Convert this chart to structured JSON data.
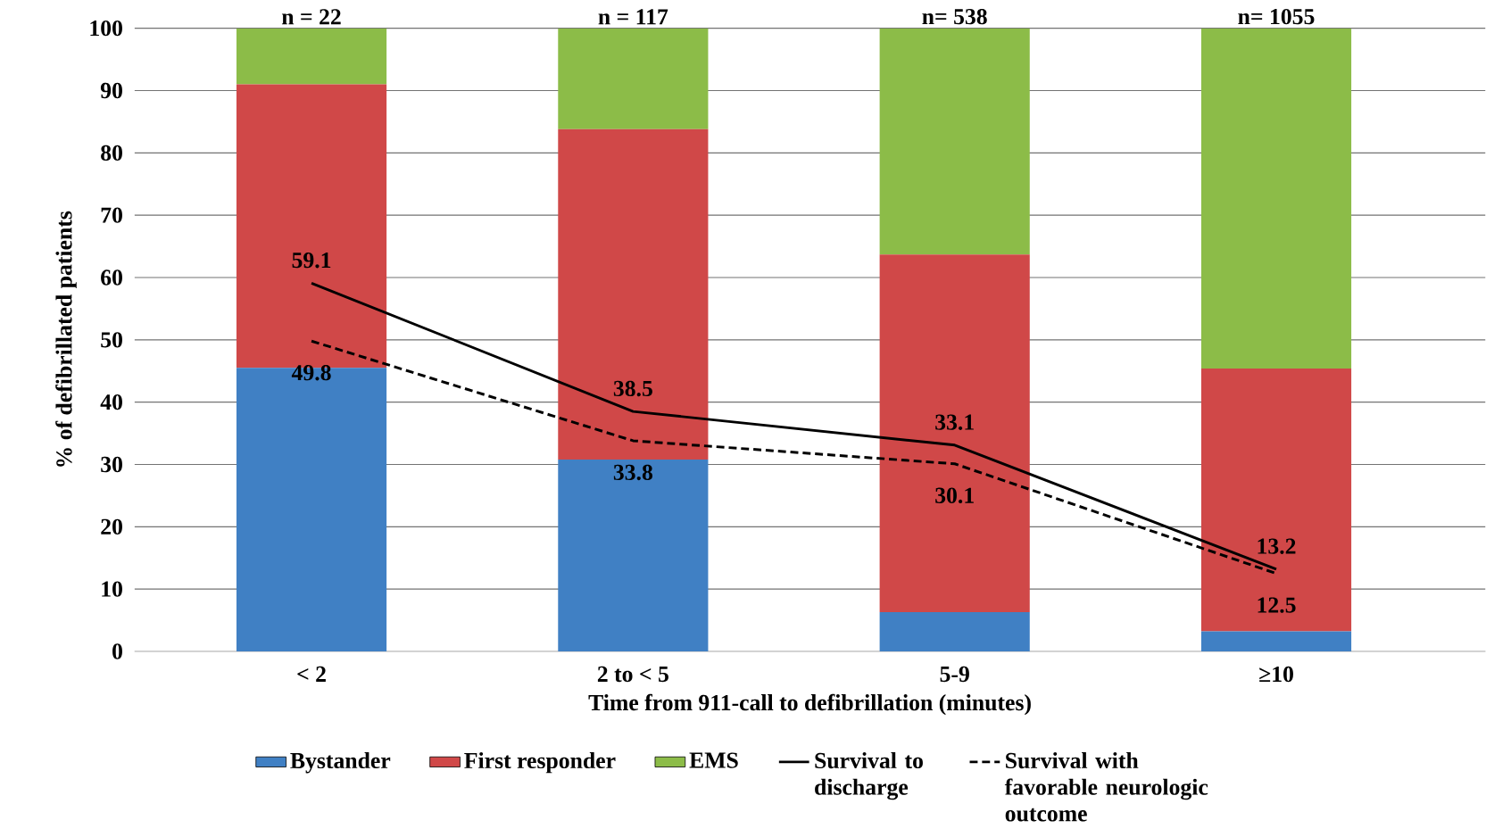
{
  "chart_data": {
    "type": "bar",
    "stacked": true,
    "xlabel": "Time from 911-call to defibrillation  (minutes)",
    "ylabel": "% of defibrillated  patients",
    "categories": [
      "< 2",
      "2 to < 5",
      "5-9",
      "≥10"
    ],
    "series": [
      {
        "name": "Bystander",
        "color": "#4080c4",
        "values": [
          45.5,
          30.8,
          6.3,
          3.2
        ]
      },
      {
        "name": "First responder",
        "color": "#d04848",
        "values": [
          45.5,
          53.0,
          57.4,
          42.2
        ]
      },
      {
        "name": "EMS",
        "color": "#8cbc48",
        "values": [
          9.0,
          16.2,
          36.3,
          54.6
        ]
      },
      {
        "name": "Survival to discharge",
        "type": "line",
        "color": "#000000",
        "line_style": "solid",
        "values": [
          59.1,
          38.5,
          33.1,
          13.2
        ],
        "value_labels": [
          "59.1",
          "38.5",
          "33.1",
          "13.2"
        ]
      },
      {
        "name": "Survival with favorable neurologic outcome",
        "type": "line",
        "color": "#000000",
        "line_style": "dashed",
        "values": [
          49.8,
          33.8,
          30.1,
          12.5
        ],
        "value_labels": [
          "49.8",
          "33.8",
          "30.1",
          "12.5"
        ]
      }
    ],
    "ylim": [
      0,
      100
    ],
    "yticks": [
      0,
      10,
      20,
      30,
      40,
      50,
      60,
      70,
      80,
      90,
      100
    ],
    "grid": "y",
    "legend": "bottom",
    "annotations": [
      {
        "text": "n = 22",
        "x": "< 2",
        "y": 100
      },
      {
        "text": "n = 117",
        "x": "2 to < 5",
        "y": 100
      },
      {
        "text": "n= 538",
        "x": "5-9",
        "y": 100
      },
      {
        "text": "n= 1055",
        "x": "≥10",
        "y": 100
      }
    ]
  }
}
